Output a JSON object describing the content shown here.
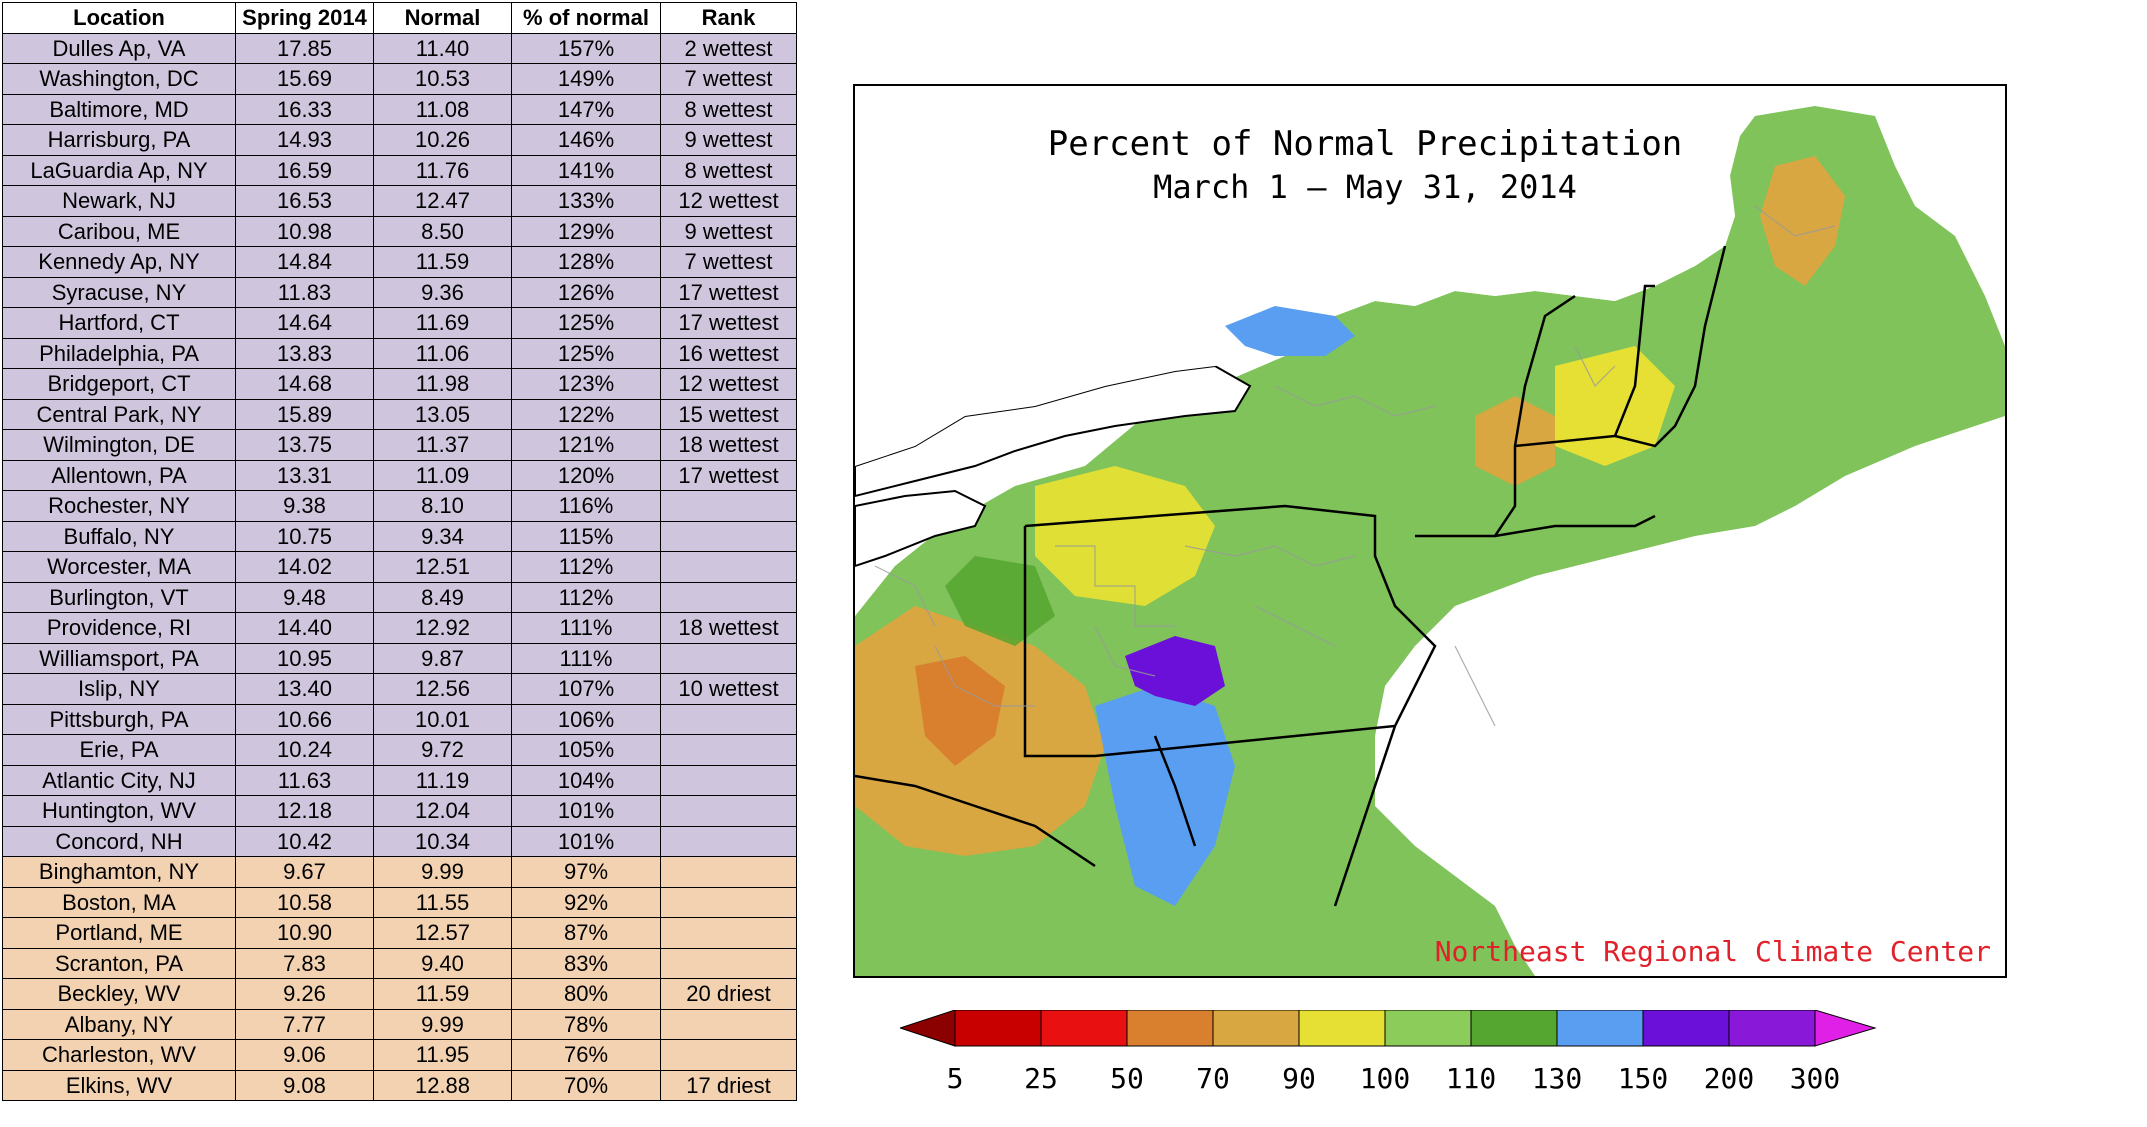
{
  "table": {
    "headers": [
      "Location",
      "Spring 2014",
      "Normal",
      "% of normal",
      "Rank"
    ],
    "rows": [
      {
        "location": "Dulles Ap, VA",
        "spring": "17.85",
        "normal": "11.40",
        "pct": "157%",
        "rank": "2 wettest",
        "group": "wet"
      },
      {
        "location": "Washington, DC",
        "spring": "15.69",
        "normal": "10.53",
        "pct": "149%",
        "rank": "7 wettest",
        "group": "wet"
      },
      {
        "location": "Baltimore, MD",
        "spring": "16.33",
        "normal": "11.08",
        "pct": "147%",
        "rank": "8 wettest",
        "group": "wet"
      },
      {
        "location": "Harrisburg, PA",
        "spring": "14.93",
        "normal": "10.26",
        "pct": "146%",
        "rank": "9 wettest",
        "group": "wet"
      },
      {
        "location": "LaGuardia Ap, NY",
        "spring": "16.59",
        "normal": "11.76",
        "pct": "141%",
        "rank": "8 wettest",
        "group": "wet"
      },
      {
        "location": "Newark, NJ",
        "spring": "16.53",
        "normal": "12.47",
        "pct": "133%",
        "rank": "12 wettest",
        "group": "wet"
      },
      {
        "location": "Caribou, ME",
        "spring": "10.98",
        "normal": "8.50",
        "pct": "129%",
        "rank": "9 wettest",
        "group": "wet"
      },
      {
        "location": "Kennedy Ap, NY",
        "spring": "14.84",
        "normal": "11.59",
        "pct": "128%",
        "rank": "7 wettest",
        "group": "wet"
      },
      {
        "location": "Syracuse, NY",
        "spring": "11.83",
        "normal": "9.36",
        "pct": "126%",
        "rank": "17 wettest",
        "group": "wet"
      },
      {
        "location": "Hartford, CT",
        "spring": "14.64",
        "normal": "11.69",
        "pct": "125%",
        "rank": "17 wettest",
        "group": "wet"
      },
      {
        "location": "Philadelphia, PA",
        "spring": "13.83",
        "normal": "11.06",
        "pct": "125%",
        "rank": "16 wettest",
        "group": "wet"
      },
      {
        "location": "Bridgeport, CT",
        "spring": "14.68",
        "normal": "11.98",
        "pct": "123%",
        "rank": "12 wettest",
        "group": "wet"
      },
      {
        "location": "Central Park, NY",
        "spring": "15.89",
        "normal": "13.05",
        "pct": "122%",
        "rank": "15 wettest",
        "group": "wet"
      },
      {
        "location": "Wilmington, DE",
        "spring": "13.75",
        "normal": "11.37",
        "pct": "121%",
        "rank": "18 wettest",
        "group": "wet"
      },
      {
        "location": "Allentown, PA",
        "spring": "13.31",
        "normal": "11.09",
        "pct": "120%",
        "rank": "17 wettest",
        "group": "wet"
      },
      {
        "location": "Rochester, NY",
        "spring": "9.38",
        "normal": "8.10",
        "pct": "116%",
        "rank": "",
        "group": "wet"
      },
      {
        "location": "Buffalo, NY",
        "spring": "10.75",
        "normal": "9.34",
        "pct": "115%",
        "rank": "",
        "group": "wet"
      },
      {
        "location": "Worcester, MA",
        "spring": "14.02",
        "normal": "12.51",
        "pct": "112%",
        "rank": "",
        "group": "wet"
      },
      {
        "location": "Burlington, VT",
        "spring": "9.48",
        "normal": "8.49",
        "pct": "112%",
        "rank": "",
        "group": "wet"
      },
      {
        "location": "Providence, RI",
        "spring": "14.40",
        "normal": "12.92",
        "pct": "111%",
        "rank": "18 wettest",
        "group": "wet"
      },
      {
        "location": "Williamsport, PA",
        "spring": "10.95",
        "normal": "9.87",
        "pct": "111%",
        "rank": "",
        "group": "wet"
      },
      {
        "location": "Islip, NY",
        "spring": "13.40",
        "normal": "12.56",
        "pct": "107%",
        "rank": "10 wettest",
        "group": "wet"
      },
      {
        "location": "Pittsburgh, PA",
        "spring": "10.66",
        "normal": "10.01",
        "pct": "106%",
        "rank": "",
        "group": "wet"
      },
      {
        "location": "Erie, PA",
        "spring": "10.24",
        "normal": "9.72",
        "pct": "105%",
        "rank": "",
        "group": "wet"
      },
      {
        "location": "Atlantic City, NJ",
        "spring": "11.63",
        "normal": "11.19",
        "pct": "104%",
        "rank": "",
        "group": "wet"
      },
      {
        "location": "Huntington, WV",
        "spring": "12.18",
        "normal": "12.04",
        "pct": "101%",
        "rank": "",
        "group": "wet"
      },
      {
        "location": "Concord, NH",
        "spring": "10.42",
        "normal": "10.34",
        "pct": "101%",
        "rank": "",
        "group": "wet"
      },
      {
        "location": "Binghamton, NY",
        "spring": "9.67",
        "normal": "9.99",
        "pct": "97%",
        "rank": "",
        "group": "dry"
      },
      {
        "location": "Boston, MA",
        "spring": "10.58",
        "normal": "11.55",
        "pct": "92%",
        "rank": "",
        "group": "dry"
      },
      {
        "location": "Portland, ME",
        "spring": "10.90",
        "normal": "12.57",
        "pct": "87%",
        "rank": "",
        "group": "dry"
      },
      {
        "location": "Scranton, PA",
        "spring": "7.83",
        "normal": "9.40",
        "pct": "83%",
        "rank": "",
        "group": "dry"
      },
      {
        "location": "Beckley, WV",
        "spring": "9.26",
        "normal": "11.59",
        "pct": "80%",
        "rank": "20 driest",
        "group": "dry"
      },
      {
        "location": "Albany, NY",
        "spring": "7.77",
        "normal": "9.99",
        "pct": "78%",
        "rank": "",
        "group": "dry"
      },
      {
        "location": "Charleston, WV",
        "spring": "9.06",
        "normal": "11.95",
        "pct": "76%",
        "rank": "",
        "group": "dry"
      },
      {
        "location": "Elkins, WV",
        "spring": "9.08",
        "normal": "12.88",
        "pct": "70%",
        "rank": "17 driest",
        "group": "dry"
      }
    ]
  },
  "map": {
    "title_line1": "Percent of Normal Precipitation",
    "title_line2": "March 1 — May 31, 2014",
    "credit": "Northeast Regional Climate Center"
  },
  "legend": {
    "labels": [
      "5",
      "25",
      "50",
      "70",
      "90",
      "100",
      "110",
      "130",
      "150",
      "200",
      "300"
    ],
    "colors": [
      "#8b0000",
      "#c80000",
      "#e81010",
      "#d9802f",
      "#d8a741",
      "#e6e034",
      "#8ccc5a",
      "#55a630",
      "#5a9ef2",
      "#6a10d8",
      "#8a18d8",
      "#e020e6"
    ]
  },
  "colors": {
    "wet_row": "#cfc6de",
    "dry_row": "#f3d2b2",
    "credit_text": "#e0202a"
  }
}
